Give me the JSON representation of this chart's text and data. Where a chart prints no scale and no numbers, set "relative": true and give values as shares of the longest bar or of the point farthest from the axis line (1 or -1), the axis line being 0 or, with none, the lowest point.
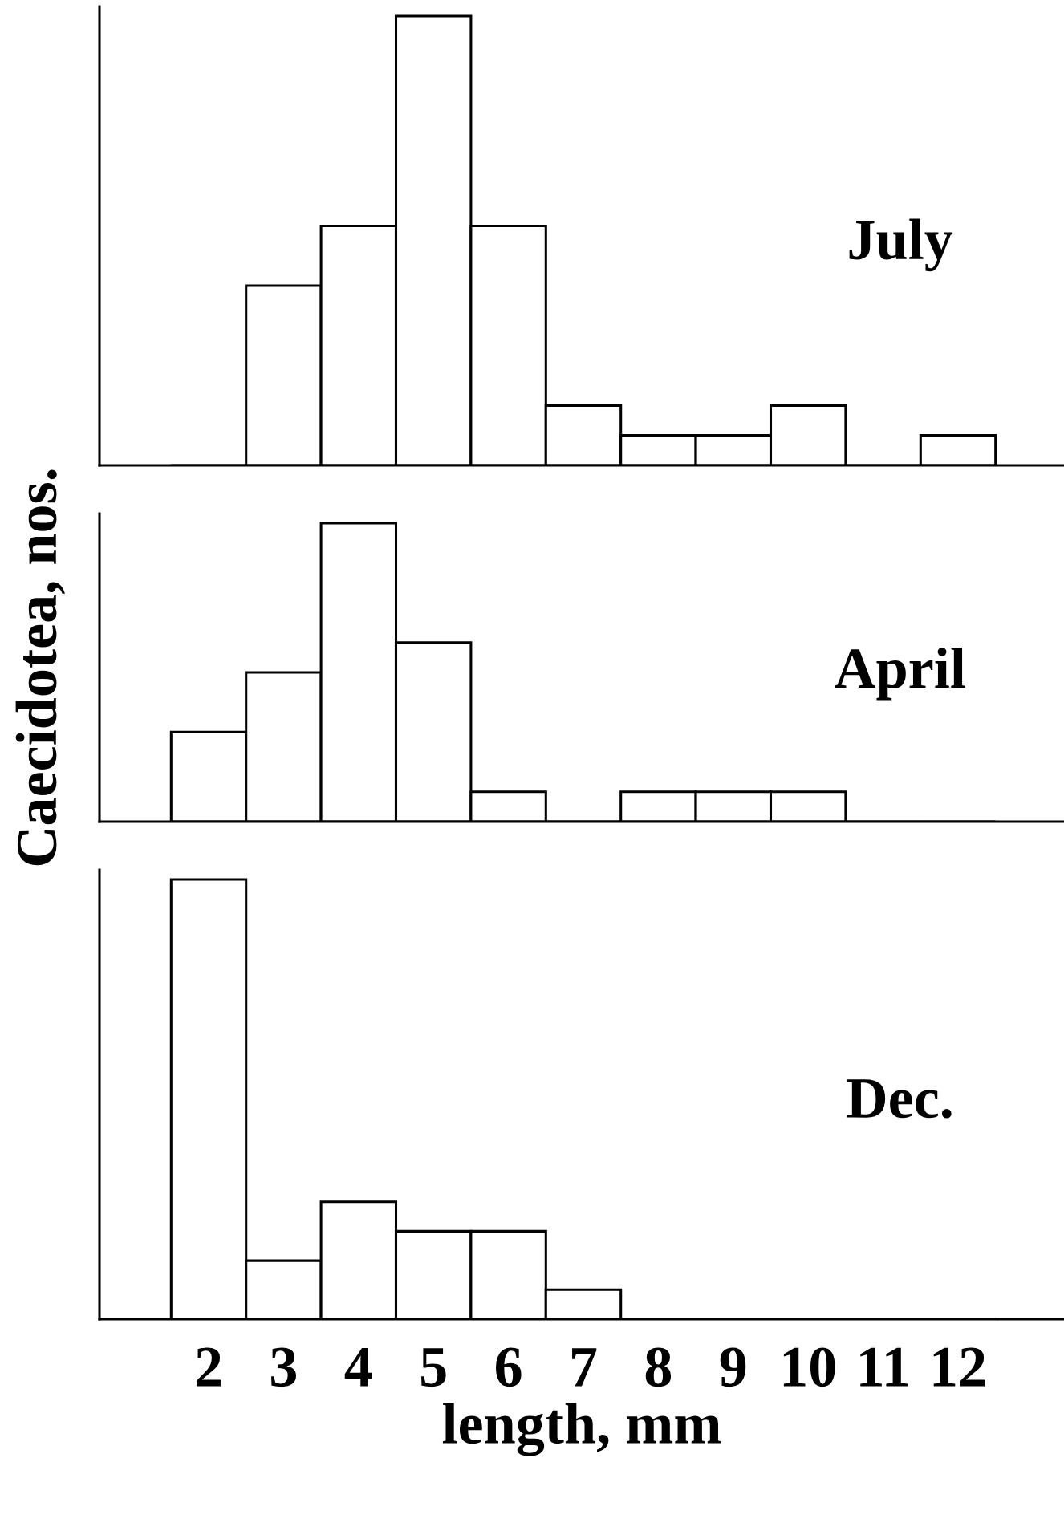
{
  "chart_data": [
    {
      "type": "bar",
      "relative": true,
      "categories": [
        "2",
        "3",
        "4",
        "5",
        "6",
        "7",
        "8",
        "9",
        "10",
        "11",
        "12"
      ],
      "series": [
        {
          "color": "#ffffff",
          "values": [
            0,
            0.4,
            0.533,
            1,
            0.533,
            0.133,
            0.067,
            0.067,
            0.133,
            0,
            0.067
          ]
        }
      ],
      "annotations": [
        "July"
      ],
      "tick_labels": false
    },
    {
      "type": "bar",
      "relative": true,
      "categories": [
        "2",
        "3",
        "4",
        "5",
        "6",
        "7",
        "8",
        "9",
        "10",
        "11",
        "12"
      ],
      "series": [
        {
          "color": "#ffffff",
          "values": [
            0.3,
            0.5,
            1,
            0.6,
            0.1,
            0,
            0.1,
            0.1,
            0.1,
            0,
            0
          ]
        }
      ],
      "annotations": [
        "April"
      ],
      "ylabel": "Caecidotea, nos.",
      "tick_labels": false
    },
    {
      "type": "bar",
      "relative": true,
      "categories": [
        "2",
        "3",
        "4",
        "5",
        "6",
        "7",
        "8",
        "9",
        "10",
        "11",
        "12"
      ],
      "series": [
        {
          "color": "#ffffff",
          "values": [
            1,
            0.133,
            0.267,
            0.2,
            0.2,
            0.067,
            0,
            0,
            0,
            0,
            0
          ]
        }
      ],
      "annotations": [
        "Dec."
      ],
      "xlabel": "length, mm",
      "tick_labels": "x"
    }
  ]
}
